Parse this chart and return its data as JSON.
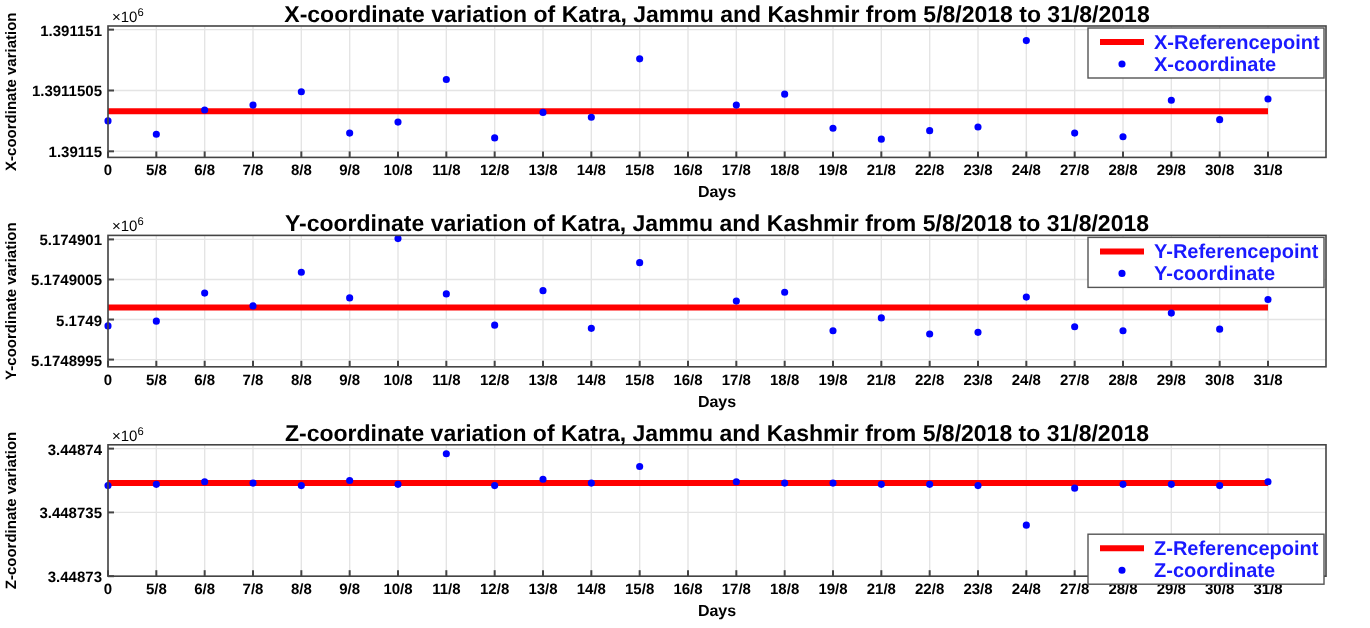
{
  "chart_data": [
    {
      "type": "scatter",
      "title": "X-coordinate variation of Katra, Jammu and Kashmir from 5/8/2018 to 31/8/2018",
      "xlabel": "Days",
      "ylabel": "X-coordinate variation",
      "annotations": [
        "×10$^{6}$"
      ],
      "grid": true,
      "legend": "top right",
      "ylim": [
        1.39114995,
        1.39115103
      ],
      "yticks": [
        1.39115,
        1.3911505,
        1.391151
      ],
      "categories": [
        "0",
        "5/8",
        "6/8",
        "7/8",
        "8/8",
        "9/8",
        "10/8",
        "11/8",
        "12/8",
        "13/8",
        "14/8",
        "15/8",
        "16/8",
        "17/8",
        "18/8",
        "19/8",
        "21/8",
        "22/8",
        "23/8",
        "24/8",
        "27/8",
        "28/8",
        "29/8",
        "30/8",
        "31/8"
      ],
      "series": [
        {
          "name": "X-Referencepoint",
          "type": "line",
          "color": "#ff0000",
          "values": [
            1.39115033,
            1.39115033,
            1.39115033,
            1.39115033,
            1.39115033,
            1.39115033,
            1.39115033,
            1.39115033,
            1.39115033,
            1.39115033,
            1.39115033,
            1.39115033,
            1.39115033,
            1.39115033,
            1.39115033,
            1.39115033,
            1.39115033,
            1.39115033,
            1.39115033,
            1.39115033,
            1.39115033,
            1.39115033,
            1.39115033,
            1.39115033,
            1.39115033
          ]
        },
        {
          "name": "X-coordinate",
          "marker": "circle",
          "color": "#0000ff",
          "values": [
            1.39115025,
            1.39115014,
            1.39115034,
            1.39115038,
            1.39115049,
            1.39115015,
            1.39115024,
            1.39115059,
            1.39115011,
            1.39115032,
            1.39115028,
            1.39115076,
            null,
            1.39115038,
            1.39115047,
            1.39115019,
            1.3911501,
            1.39115017,
            1.3911502,
            1.39115091,
            1.39115015,
            1.39115012,
            1.39115042,
            1.39115026,
            1.39115043
          ]
        }
      ]
    },
    {
      "type": "scatter",
      "title": "Y-coordinate variation of Katra, Jammu and Kashmir from 5/8/2018 to 31/8/2018",
      "xlabel": "Days",
      "ylabel": "Y-coordinate variation",
      "annotations": [
        "×10$^{6}$"
      ],
      "grid": true,
      "legend": "top right",
      "ylim": [
        5.17489941,
        5.17490105
      ],
      "yticks": [
        5.1748995,
        5.1749,
        5.1749005,
        5.174901
      ],
      "categories": [
        "0",
        "5/8",
        "6/8",
        "7/8",
        "8/8",
        "9/8",
        "10/8",
        "11/8",
        "12/8",
        "13/8",
        "14/8",
        "15/8",
        "16/8",
        "17/8",
        "18/8",
        "19/8",
        "21/8",
        "22/8",
        "23/8",
        "24/8",
        "27/8",
        "28/8",
        "29/8",
        "30/8",
        "31/8"
      ],
      "series": [
        {
          "name": "Y-Referencepoint",
          "type": "line",
          "color": "#ff0000",
          "values": [
            5.17490015,
            5.17490015,
            5.17490015,
            5.17490015,
            5.17490015,
            5.17490015,
            5.17490015,
            5.17490015,
            5.17490015,
            5.17490015,
            5.17490015,
            5.17490015,
            5.17490015,
            5.17490015,
            5.17490015,
            5.17490015,
            5.17490015,
            5.17490015,
            5.17490015,
            5.17490015,
            5.17490015,
            5.17490015,
            5.17490015,
            5.17490015,
            5.17490015
          ]
        },
        {
          "name": "Y-coordinate",
          "marker": "circle",
          "color": "#0000ff",
          "values": [
            5.17489992,
            5.17489998,
            5.17490033,
            5.17490017,
            5.17490059,
            5.17490027,
            5.17490101,
            5.17490032,
            5.17489993,
            5.17490036,
            5.17489989,
            5.17490071,
            null,
            5.17490023,
            5.17490034,
            5.17489986,
            5.17490002,
            5.17489982,
            5.17489984,
            5.17490028,
            5.17489991,
            5.17489986,
            5.17490008,
            5.17489988,
            5.17490025
          ]
        }
      ]
    },
    {
      "type": "scatter",
      "title": "Z-coordinate variation of Katra, Jammu and Kashmir from 5/8/2018 to 31/8/2018",
      "xlabel": "Days",
      "ylabel": "Z-coordinate variation",
      "annotations": [
        "×10$^{6}$"
      ],
      "grid": true,
      "legend": "bottom right",
      "ylim": [
        3.44873,
        3.4487403
      ],
      "yticks": [
        3.44873,
        3.448735,
        3.44874
      ],
      "categories": [
        "0",
        "5/8",
        "6/8",
        "7/8",
        "8/8",
        "9/8",
        "10/8",
        "11/8",
        "12/8",
        "13/8",
        "14/8",
        "15/8",
        "16/8",
        "17/8",
        "18/8",
        "19/8",
        "21/8",
        "22/8",
        "23/8",
        "24/8",
        "27/8",
        "28/8",
        "29/8",
        "30/8",
        "31/8"
      ],
      "series": [
        {
          "name": "Z-Referencepoint",
          "type": "line",
          "color": "#ff0000",
          "values": [
            3.4487373,
            3.4487373,
            3.4487373,
            3.4487373,
            3.4487373,
            3.4487373,
            3.4487373,
            3.4487373,
            3.4487373,
            3.4487373,
            3.4487373,
            3.4487373,
            3.4487373,
            3.4487373,
            3.4487373,
            3.4487373,
            3.4487373,
            3.4487373,
            3.4487373,
            3.4487373,
            3.4487373,
            3.4487373,
            3.4487373,
            3.4487373,
            3.4487373
          ]
        },
        {
          "name": "Z-coordinate",
          "marker": "circle",
          "color": "#0000ff",
          "values": [
            3.4487371,
            3.4487372,
            3.4487374,
            3.4487373,
            3.4487371,
            3.4487375,
            3.4487372,
            3.4487396,
            3.4487371,
            3.4487376,
            3.4487373,
            3.4487386,
            null,
            3.4487374,
            3.4487373,
            3.4487373,
            3.4487372,
            3.4487372,
            3.4487371,
            3.448734,
            3.4487369,
            3.4487372,
            3.4487372,
            3.4487371,
            3.4487374
          ]
        }
      ]
    }
  ]
}
